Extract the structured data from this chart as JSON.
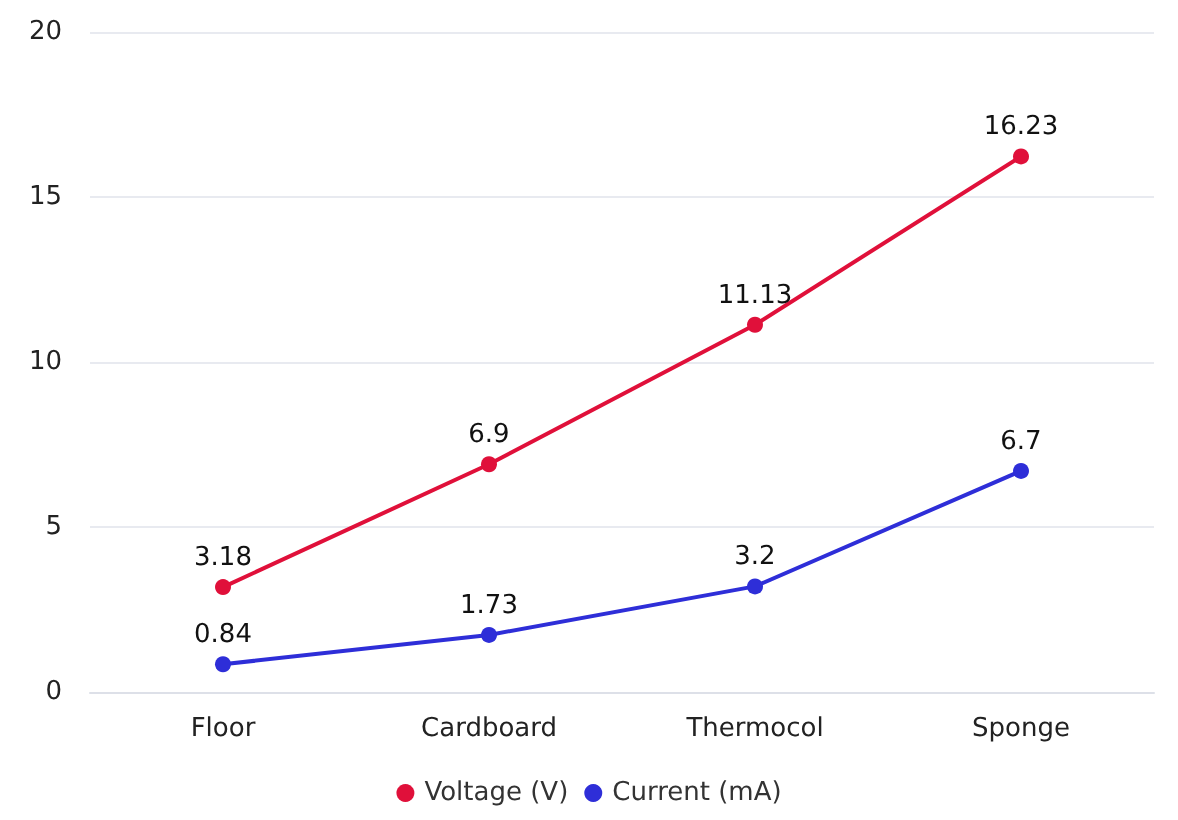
{
  "chart_data": {
    "type": "line",
    "categories": [
      "Floor",
      "Cardboard",
      "Thermocol",
      "Sponge"
    ],
    "series": [
      {
        "name": "Voltage (V)",
        "color": "#e0103a",
        "values": [
          3.18,
          6.9,
          11.13,
          16.23
        ]
      },
      {
        "name": "Current (mA)",
        "color": "#2e2ed8",
        "values": [
          0.84,
          1.73,
          3.2,
          6.7
        ]
      }
    ],
    "ylim": [
      0,
      20
    ],
    "yticks": [
      0,
      5,
      10,
      15,
      20
    ],
    "grid": "y",
    "legend": "bottom",
    "marker": "circle",
    "line_style": "solid",
    "data_labels": true
  }
}
